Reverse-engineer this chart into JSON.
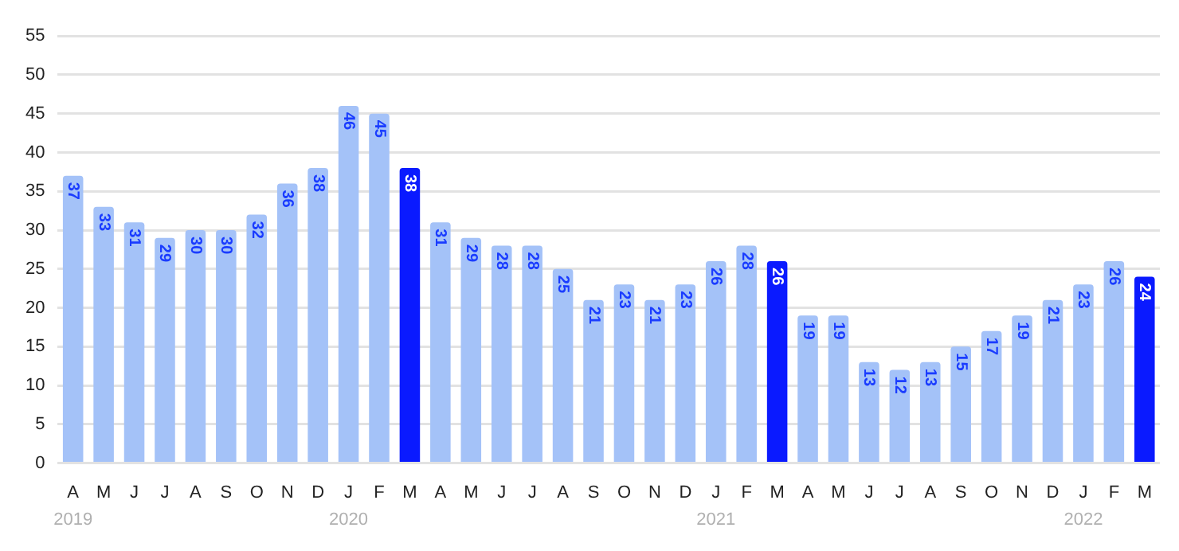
{
  "chart_data": {
    "type": "bar",
    "categories": [
      "A\n2019",
      "M",
      "J",
      "J",
      "A",
      "S",
      "O",
      "N",
      "D",
      "J\n2020",
      "F",
      "M",
      "A",
      "M",
      "J",
      "J",
      "A",
      "S",
      "O",
      "N",
      "D",
      "J\n2021",
      "F",
      "M",
      "A",
      "M",
      "J",
      "J",
      "A",
      "S",
      "O",
      "N",
      "D",
      "J\n2022",
      "F",
      "M"
    ],
    "values": [
      37,
      33,
      31,
      29,
      30,
      30,
      32,
      36,
      38,
      46,
      45,
      38,
      31,
      29,
      28,
      28,
      25,
      21,
      23,
      21,
      23,
      26,
      28,
      26,
      19,
      19,
      13,
      12,
      13,
      15,
      17,
      19,
      21,
      23,
      26,
      24
    ],
    "colors": [
      "#a4c2f8",
      "#a4c2f8",
      "#a4c2f8",
      "#a4c2f8",
      "#a4c2f8",
      "#a4c2f8",
      "#a4c2f8",
      "#a4c2f8",
      "#a4c2f8",
      "#a4c2f8",
      "#a4c2f8",
      "#0a1aff",
      "#a4c2f8",
      "#a4c2f8",
      "#a4c2f8",
      "#a4c2f8",
      "#a4c2f8",
      "#a4c2f8",
      "#a4c2f8",
      "#a4c2f8",
      "#a4c2f8",
      "#a4c2f8",
      "#a4c2f8",
      "#0a1aff",
      "#a4c2f8",
      "#a4c2f8",
      "#a4c2f8",
      "#a4c2f8",
      "#a4c2f8",
      "#a4c2f8",
      "#a4c2f8",
      "#a4c2f8",
      "#a4c2f8",
      "#a4c2f8",
      "#a4c2f8",
      "#0a1aff"
    ],
    "ylim": [
      0,
      55
    ],
    "yticks": [
      0,
      5,
      10,
      15,
      20,
      25,
      30,
      35,
      40,
      45,
      50,
      55
    ],
    "grid": "y",
    "data_labels": true,
    "legend": false
  }
}
